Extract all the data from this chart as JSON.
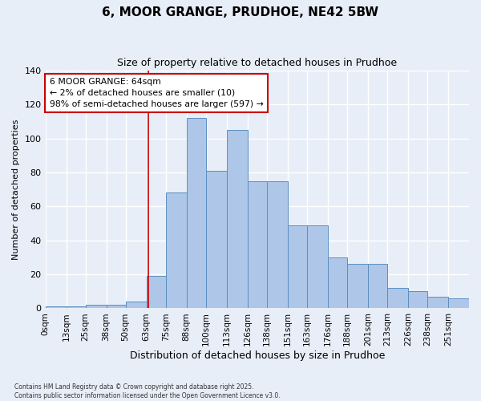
{
  "title": "6, MOOR GRANGE, PRUDHOE, NE42 5BW",
  "subtitle": "Size of property relative to detached houses in Prudhoe",
  "xlabel": "Distribution of detached houses by size in Prudhoe",
  "ylabel": "Number of detached properties",
  "bin_labels": [
    "0sqm",
    "13sqm",
    "25sqm",
    "38sqm",
    "50sqm",
    "63sqm",
    "75sqm",
    "88sqm",
    "100sqm",
    "113sqm",
    "126sqm",
    "138sqm",
    "151sqm",
    "163sqm",
    "176sqm",
    "188sqm",
    "201sqm",
    "213sqm",
    "226sqm",
    "238sqm",
    "251sqm"
  ],
  "bin_edges": [
    0,
    13,
    25,
    38,
    50,
    63,
    75,
    88,
    100,
    113,
    126,
    138,
    151,
    163,
    176,
    188,
    201,
    213,
    226,
    238,
    251,
    264
  ],
  "counts": [
    1,
    1,
    2,
    2,
    4,
    19,
    68,
    112,
    81,
    105,
    75,
    75,
    49,
    49,
    30,
    26,
    26,
    12,
    10,
    7,
    6
  ],
  "bar_color": "#aec6e8",
  "bar_edge_color": "#5a8fc2",
  "background_color": "#e8eef8",
  "grid_color": "#ffffff",
  "red_line_x": 64,
  "annotation_text": "6 MOOR GRANGE: 64sqm\n← 2% of detached houses are smaller (10)\n98% of semi-detached houses are larger (597) →",
  "annotation_box_color": "#ffffff",
  "annotation_box_edge": "#cc0000",
  "ylim": [
    0,
    140
  ],
  "yticks": [
    0,
    20,
    40,
    60,
    80,
    100,
    120,
    140
  ],
  "footer1": "Contains HM Land Registry data © Crown copyright and database right 2025.",
  "footer2": "Contains public sector information licensed under the Open Government Licence v3.0."
}
